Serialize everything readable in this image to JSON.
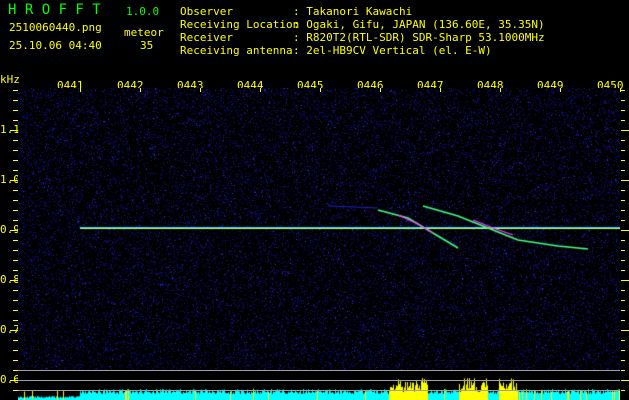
{
  "app": {
    "name": "H R O F F T",
    "version": "1.0.0"
  },
  "file": {
    "name": "2510060440.png",
    "datetime": "25.10.06 04:40"
  },
  "meteor": {
    "label": "meteor",
    "count": "35"
  },
  "info": [
    {
      "label": "Observer",
      "value": ": Takanori Kawachi"
    },
    {
      "label": "Receiving Location",
      "value": ": Ogaki, Gifu, JAPAN (136.60E, 35.35N)"
    },
    {
      "label": "Receiver",
      "value": ": R820T2(RTL-SDR) SDR-Sharp 53.1000MHz"
    },
    {
      "label": "Receiving antenna",
      "value": ": 2el-HB9CV Vertical (el. E-W)"
    }
  ],
  "axis": {
    "unit": "kHz",
    "time_labels": [
      "0441",
      "0442",
      "0443",
      "0444",
      "0445",
      "0446",
      "0447",
      "0448",
      "0449",
      "0450"
    ],
    "freq_labels": [
      "1.1",
      "1.0",
      "0.9",
      "0.8",
      "0.7",
      "0.6"
    ]
  },
  "colors": {
    "text": "#ffff00",
    "title": "#00ff00",
    "noise": "#1010a0",
    "histogram": "#00ffff",
    "histogram_peak": "#ffff00"
  }
}
